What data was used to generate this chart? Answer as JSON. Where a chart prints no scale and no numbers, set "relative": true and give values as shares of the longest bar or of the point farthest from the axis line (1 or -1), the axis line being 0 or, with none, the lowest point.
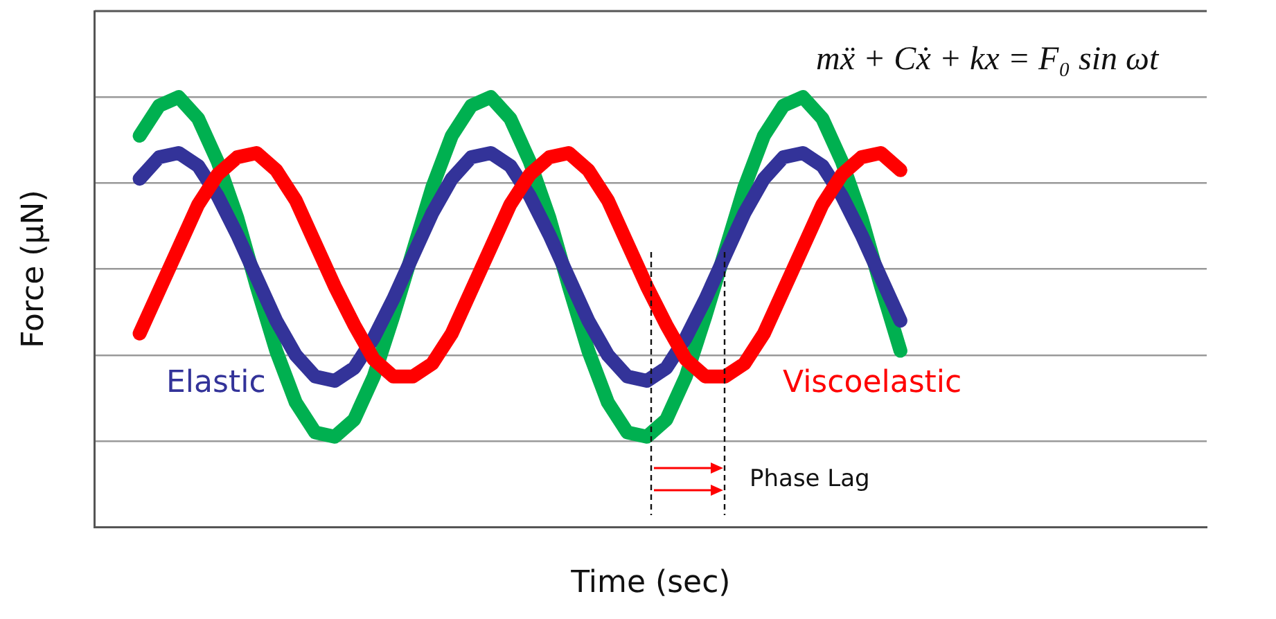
{
  "chart_data": {
    "type": "line",
    "relative": true,
    "xlabel": "Time (sec)",
    "ylabel": "Force (μN)",
    "categories": [
      null,
      null,
      null,
      null,
      null,
      null,
      null,
      null,
      null,
      null,
      null,
      null,
      null,
      null,
      null,
      null,
      null,
      null,
      null,
      null,
      null,
      null,
      null,
      null,
      null,
      null,
      null,
      null,
      null,
      null,
      null,
      null,
      null,
      null,
      null,
      null,
      null,
      null,
      null,
      null
    ],
    "grid": "y",
    "marker": "none",
    "line_style": "solid",
    "legend": false,
    "series": [
      {
        "color": "#00b050",
        "values": [
          0.91,
          0.98,
          1.0,
          0.95,
          0.85,
          0.72,
          0.56,
          0.41,
          0.29,
          0.22,
          0.21,
          0.25,
          0.35,
          0.49,
          0.64,
          0.79,
          0.91,
          0.98,
          1.0,
          0.95,
          0.85,
          0.72,
          0.56,
          0.41,
          0.29,
          0.22,
          0.21,
          0.25,
          0.35,
          0.49,
          0.64,
          0.79,
          0.91,
          0.98,
          1.0,
          0.95,
          0.85,
          0.72,
          0.56,
          0.41
        ]
      },
      {
        "name": "Elastic",
        "color": "#333399",
        "values": [
          0.81,
          0.86,
          0.87,
          0.84,
          0.77,
          0.68,
          0.58,
          0.48,
          0.4,
          0.35,
          0.34,
          0.37,
          0.44,
          0.53,
          0.63,
          0.73,
          0.81,
          0.86,
          0.87,
          0.84,
          0.77,
          0.68,
          0.58,
          0.48,
          0.4,
          0.35,
          0.34,
          0.37,
          0.44,
          0.53,
          0.63,
          0.73,
          0.81,
          0.86,
          0.87,
          0.84,
          0.77,
          0.68,
          0.58,
          0.48
        ]
      },
      {
        "name": "Viscoelastic",
        "color": "#ff0000",
        "values": [
          0.45,
          0.55,
          0.65,
          0.75,
          0.82,
          0.86,
          0.87,
          0.83,
          0.76,
          0.66,
          0.56,
          0.47,
          0.39,
          0.35,
          0.35,
          0.38,
          0.45,
          0.55,
          0.65,
          0.75,
          0.82,
          0.86,
          0.87,
          0.83,
          0.76,
          0.66,
          0.56,
          0.47,
          0.39,
          0.35,
          0.35,
          0.38,
          0.45,
          0.55,
          0.65,
          0.75,
          0.82,
          0.86,
          0.87,
          0.83
        ]
      }
    ],
    "annotations": [
      "mẍ + Cẋ + kx = F₀ sin ωt",
      "Phase Lag"
    ]
  }
}
